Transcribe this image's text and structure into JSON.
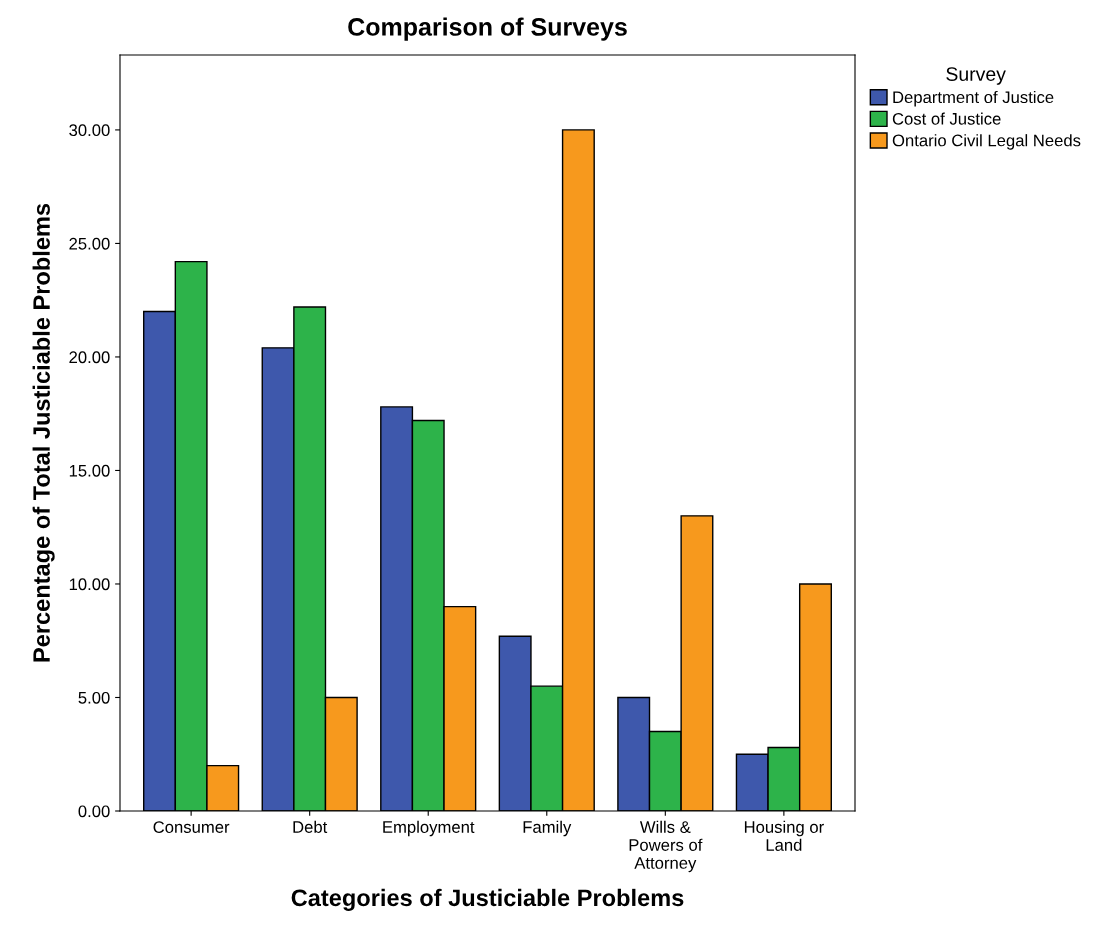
{
  "chart_data": {
    "type": "bar",
    "title": "Comparison of Surveys",
    "xlabel": "Categories of Justiciable Problems",
    "ylabel": "Percentage of Total Justiciable Problems",
    "legend_title": "Survey",
    "categories": [
      "Consumer",
      "Debt",
      "Employment",
      "Family",
      "Wills &\nPowers of\nAttorney",
      "Housing or\nLand"
    ],
    "series": [
      {
        "name": "Department of Justice",
        "color": "#3e58ac",
        "values": [
          22.0,
          20.4,
          17.8,
          7.7,
          5.0,
          2.5
        ]
      },
      {
        "name": "Cost of Justice",
        "color": "#2db34a",
        "values": [
          24.2,
          22.2,
          17.2,
          5.5,
          3.5,
          2.8
        ]
      },
      {
        "name": "Ontario Civil Legal Needs",
        "color": "#f7991d",
        "values": [
          2.0,
          5.0,
          9.0,
          30.0,
          13.0,
          10.0
        ]
      }
    ],
    "ylim": [
      0,
      33.3
    ],
    "yticks": [
      {
        "value": 0,
        "label": "0.00"
      },
      {
        "value": 5,
        "label": "5.00"
      },
      {
        "value": 10,
        "label": "10.00"
      },
      {
        "value": 15,
        "label": "15.00"
      },
      {
        "value": 20,
        "label": "20.00"
      },
      {
        "value": 25,
        "label": "25.00"
      },
      {
        "value": 30,
        "label": "30.00"
      }
    ],
    "grid": false,
    "legend": "top right"
  }
}
